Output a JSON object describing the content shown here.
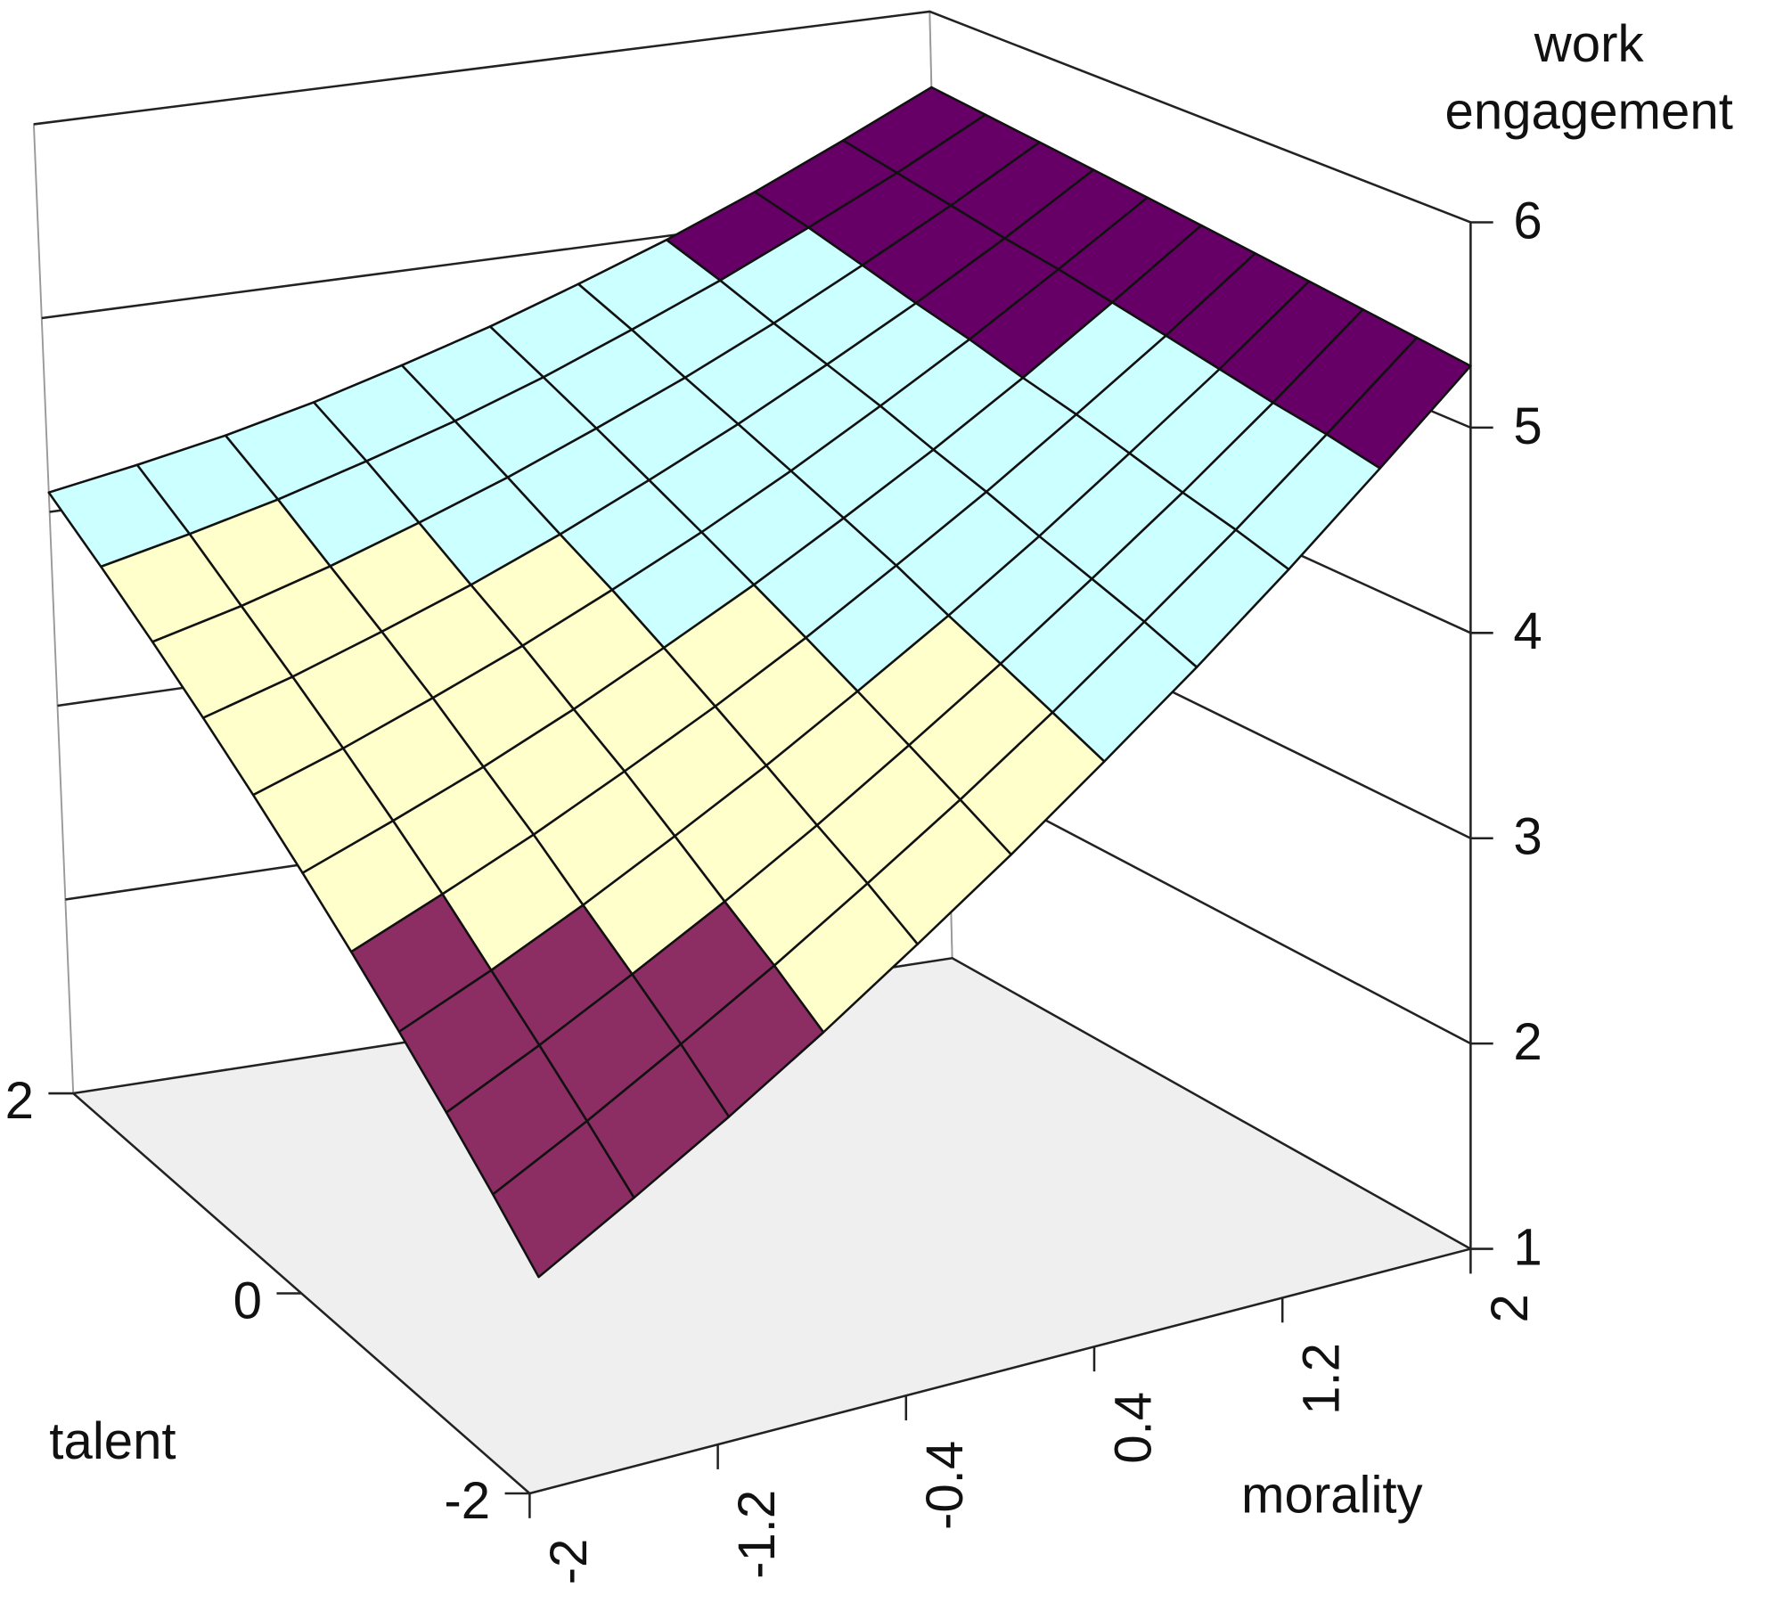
{
  "chart_data": {
    "type": "surface",
    "xlabel": "morality",
    "ylabel": "talent",
    "zlabel": [
      "work",
      "engagement"
    ],
    "x": [
      -2,
      -1.6,
      -1.2,
      -0.8,
      -0.4,
      0,
      0.4,
      0.8,
      1.2,
      1.6,
      2
    ],
    "y": [
      -2,
      -1.6,
      -1.2,
      -0.8,
      -0.4,
      0,
      0.4,
      0.8,
      1.2,
      1.6,
      2
    ],
    "z": [
      [
        2,
        2.26,
        2.53,
        2.82,
        3.13,
        3.45,
        3.79,
        4.14,
        4.51,
        4.9,
        5.3
      ],
      [
        2.21,
        2.45,
        2.71,
        2.98,
        3.27,
        3.57,
        3.89,
        4.23,
        4.58,
        4.95,
        5.33
      ],
      [
        2.42,
        2.64,
        2.88,
        3.13,
        3.4,
        3.69,
        3.99,
        4.31,
        4.64,
        4.99,
        5.36
      ],
      [
        2.63,
        2.83,
        3.05,
        3.29,
        3.54,
        3.81,
        4.09,
        4.39,
        4.71,
        5.04,
        5.39
      ],
      [
        2.84,
        3.03,
        3.23,
        3.45,
        3.68,
        3.93,
        4.2,
        4.48,
        4.78,
        5.09,
        5.42
      ],
      [
        3.05,
        3.22,
        3.4,
        3.6,
        3.82,
        4.05,
        4.3,
        4.56,
        4.84,
        5.14,
        5.45
      ],
      [
        3.26,
        3.41,
        3.58,
        3.76,
        3.96,
        4.17,
        4.4,
        4.65,
        4.91,
        5.19,
        5.48
      ],
      [
        3.47,
        3.6,
        3.75,
        3.91,
        4.09,
        4.29,
        4.5,
        4.73,
        4.97,
        5.23,
        5.51
      ],
      [
        3.68,
        3.79,
        3.92,
        4.07,
        4.23,
        4.41,
        4.6,
        4.81,
        5.04,
        5.28,
        5.54
      ],
      [
        3.89,
        3.99,
        4.1,
        4.23,
        4.37,
        4.53,
        4.71,
        4.9,
        5.11,
        5.33,
        5.57
      ],
      [
        4.1,
        4.18,
        4.27,
        4.38,
        4.51,
        4.65,
        4.81,
        4.98,
        5.17,
        5.38,
        5.6
      ]
    ],
    "xlim": [
      -2,
      2
    ],
    "xticks": [
      -2,
      -1.2,
      -0.4,
      0.4,
      1.2,
      2
    ],
    "ylim": [
      -2,
      2
    ],
    "yticks": [
      -2,
      0,
      2
    ],
    "zlim": [
      1,
      6
    ],
    "zticks": [
      1,
      2,
      3,
      4,
      5,
      6
    ],
    "color_levels": [
      3,
      4,
      5
    ],
    "colors": [
      "#8c2d63",
      "#ffffcc",
      "#ccffff",
      "#660066"
    ],
    "floor_color": "#efefef",
    "grid": true
  }
}
